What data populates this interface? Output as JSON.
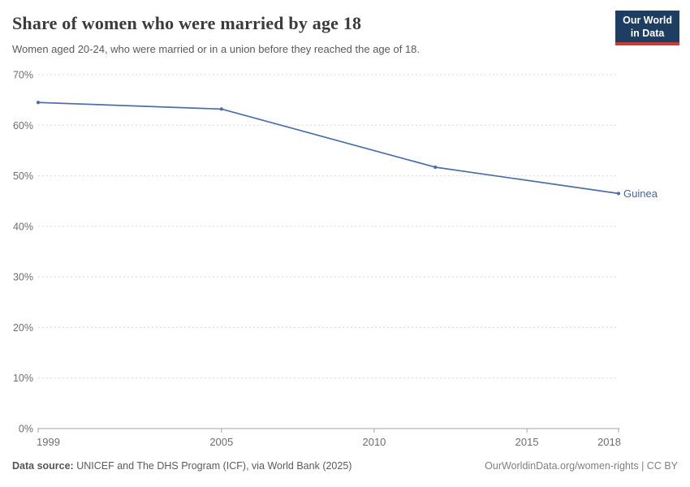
{
  "header": {
    "title": "Share of women who were married by age 18",
    "subtitle": "Women aged 20-24, who were married or in a union before they reached the age of 18.",
    "logo_line1": "Our World",
    "logo_line2": "in Data"
  },
  "chart_data": {
    "type": "line",
    "title": "Share of women who were married by age 18",
    "entity": "Guinea",
    "x": [
      1999,
      2005,
      2012,
      2018
    ],
    "values": [
      64.5,
      63.2,
      51.7,
      46.5
    ],
    "series": [
      {
        "name": "Guinea",
        "x": [
          1999,
          2005,
          2012,
          2018
        ],
        "values": [
          64.5,
          63.2,
          51.7,
          46.5
        ]
      }
    ],
    "xticks": [
      1999,
      2005,
      2010,
      2015,
      2018
    ],
    "yticks": [
      0,
      10,
      20,
      30,
      40,
      50,
      60,
      70
    ],
    "ytick_suffix": "%",
    "xlim": [
      1999,
      2018
    ],
    "ylim": [
      0,
      70
    ],
    "grid": true,
    "legend_position": "end-of-line-label",
    "line_color": "#4d6fa8",
    "label_color": "#4864a5",
    "grid_color": "#dadada",
    "axis_color": "#a6a6a6",
    "tick_label_color": "#6e6e6e"
  },
  "footer": {
    "source_label": "Data source:",
    "source_text": "UNICEF and The DHS Program (ICF), via World Bank (2025)",
    "link": "OurWorldinData.org/women-rights",
    "separator": " | ",
    "license": "CC BY"
  },
  "colors": {
    "logo_bg": "#1d3d63",
    "logo_accent": "#cc3b33",
    "title": "#3b3b3b"
  }
}
